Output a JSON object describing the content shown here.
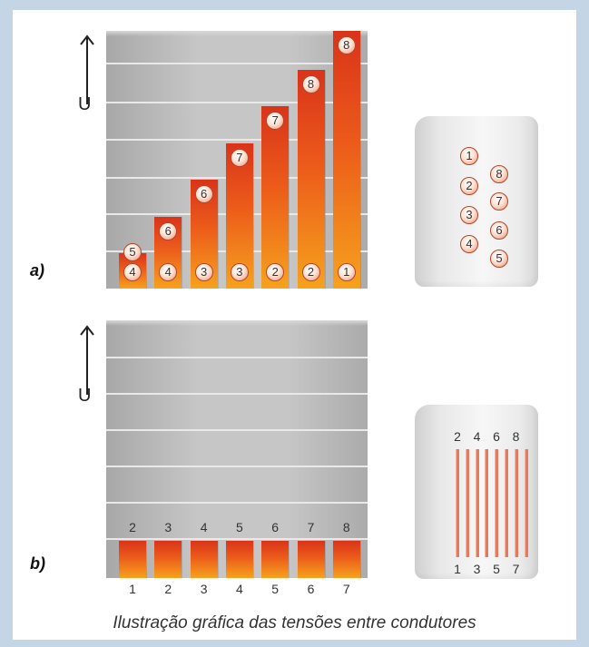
{
  "part_a": {
    "label": "a)",
    "axis_label": "U",
    "chart_data": {
      "type": "bar",
      "x": [
        1,
        2,
        3,
        4,
        5,
        6,
        7
      ],
      "values": [
        1,
        2,
        3,
        4,
        5,
        6,
        7
      ],
      "bottom_labels": [
        "4",
        "4",
        "3",
        "3",
        "2",
        "2",
        "1"
      ],
      "top_labels": [
        "5",
        "6",
        "6",
        "7",
        "7",
        "8",
        "8"
      ],
      "ylim": [
        0,
        7
      ]
    },
    "connector": {
      "left_pins": [
        "1",
        "2",
        "3",
        "4"
      ],
      "right_pins": [
        "8",
        "7",
        "6",
        "5"
      ]
    }
  },
  "part_b": {
    "label": "b)",
    "axis_label": "U",
    "chart_data": {
      "type": "bar",
      "categories": [
        "1",
        "2",
        "3",
        "4",
        "5",
        "6",
        "7"
      ],
      "values": [
        1,
        1,
        1,
        1,
        1,
        1,
        1
      ],
      "top_labels": [
        "2",
        "3",
        "4",
        "5",
        "6",
        "7",
        "8"
      ],
      "ylim": [
        0,
        7
      ]
    },
    "connector": {
      "top_labels": [
        "2",
        "4",
        "6",
        "8"
      ],
      "bottom_labels": [
        "1",
        "3",
        "5",
        "7"
      ]
    }
  },
  "caption": "Ilustração gráfica das tensões entre condutores",
  "colors": {
    "bar_top": "#d9331a",
    "bar_bottom": "#f6a21e",
    "background": "#c4d6e6",
    "wire": "#e8795c"
  }
}
